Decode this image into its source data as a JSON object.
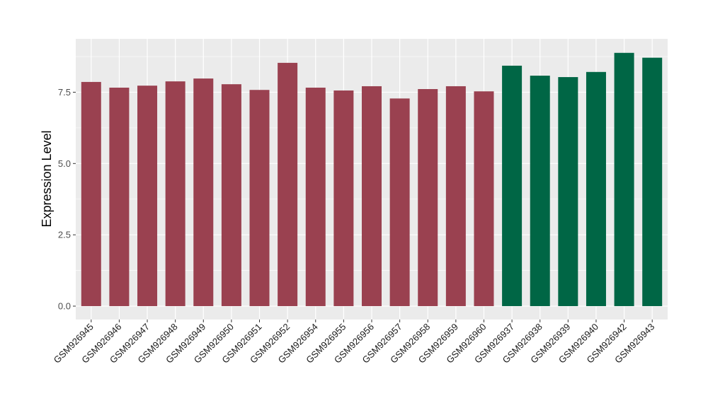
{
  "chart_data": {
    "type": "bar",
    "title": "",
    "xlabel": "",
    "ylabel": "Expression Level",
    "ylim": [
      -0.47,
      9.37
    ],
    "yticks": [
      "0.0",
      "2.5",
      "5.0",
      "7.5"
    ],
    "ytick_values": [
      0,
      2.5,
      5,
      7.5
    ],
    "grid": true,
    "categories": [
      "GSM926945",
      "GSM926946",
      "GSM926947",
      "GSM926948",
      "GSM926949",
      "GSM926950",
      "GSM926951",
      "GSM926952",
      "GSM926954",
      "GSM926955",
      "GSM926956",
      "GSM926957",
      "GSM926958",
      "GSM926959",
      "GSM926960",
      "GSM926937",
      "GSM926938",
      "GSM926939",
      "GSM926940",
      "GSM926942",
      "GSM926943"
    ],
    "values": [
      7.86,
      7.66,
      7.73,
      7.88,
      7.98,
      7.78,
      7.58,
      8.53,
      7.66,
      7.56,
      7.71,
      7.28,
      7.61,
      7.71,
      7.53,
      8.43,
      8.08,
      8.03,
      8.21,
      8.88,
      8.71
    ],
    "groups": [
      "a",
      "a",
      "a",
      "a",
      "a",
      "a",
      "a",
      "a",
      "a",
      "a",
      "a",
      "a",
      "a",
      "a",
      "a",
      "b",
      "b",
      "b",
      "b",
      "b",
      "b"
    ],
    "colors": {
      "a": "#9a4150",
      "b": "#006645"
    },
    "panel_background": "#ebebeb"
  }
}
